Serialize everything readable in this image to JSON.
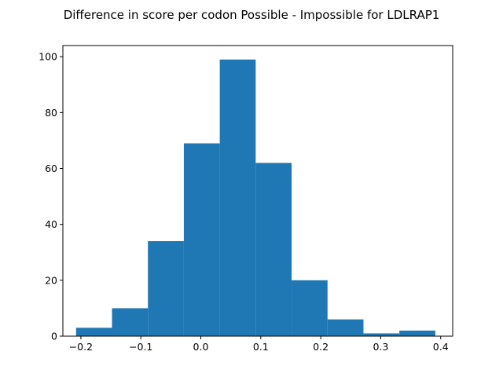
{
  "chart_data": {
    "type": "bar",
    "title": "Difference in score per codon Possible - Impossible for LDLRAP1",
    "xlabel": "",
    "ylabel": "",
    "xlim": [
      -0.23,
      0.42
    ],
    "ylim": [
      0,
      104
    ],
    "bin_edges": [
      -0.208,
      -0.1481,
      -0.0882,
      -0.0283,
      0.0316,
      0.0915,
      0.1514,
      0.2113,
      0.2712,
      0.3311,
      0.391
    ],
    "values": [
      3,
      10,
      34,
      69,
      99,
      62,
      20,
      6,
      1,
      2
    ],
    "x_ticks": [
      -0.2,
      -0.1,
      0.0,
      0.1,
      0.2,
      0.3,
      0.4
    ],
    "x_tick_labels": [
      "−0.2",
      "−0.1",
      "0.0",
      "0.1",
      "0.2",
      "0.3",
      "0.4"
    ],
    "y_ticks": [
      0,
      20,
      40,
      60,
      80,
      100
    ],
    "y_tick_labels": [
      "0",
      "20",
      "40",
      "60",
      "80",
      "100"
    ],
    "bar_color": "#1f77b4",
    "grid": false,
    "legend": "none"
  }
}
